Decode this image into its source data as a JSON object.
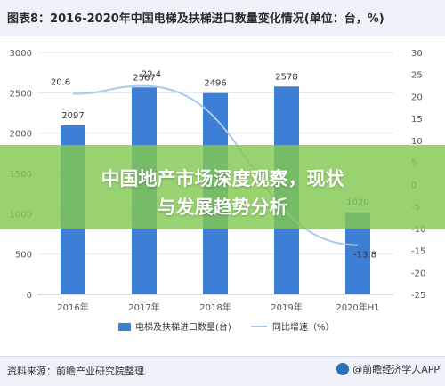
{
  "header": {
    "title": "图表8：2016-2020年中国电梯及扶梯进口数量变化情况(单位：台，%)"
  },
  "footer": {
    "source": "资料来源：前瞻产业研究院整理",
    "brand": "@前瞻经济学人APP"
  },
  "overlay": {
    "line1": "中国地产市场深度观察，现状",
    "line2": "与发展趋势分析"
  },
  "colors": {
    "bar": "#3d7fd4",
    "line": "#a9c9ee",
    "overlay": "#82c850"
  },
  "chart_data": {
    "type": "bar",
    "categories": [
      "2016年",
      "2017年",
      "2018年",
      "2019年",
      "2020年H1"
    ],
    "series": [
      {
        "name": "电梯及扶梯进口数量(台)",
        "type": "bar",
        "axis": "left",
        "values": [
          2097,
          2567,
          2496,
          2578,
          1020
        ],
        "labels": [
          "2097",
          "2567",
          "2496",
          "2578",
          "1020"
        ]
      },
      {
        "name": "同比增速（%）",
        "type": "line",
        "axis": "right",
        "values": [
          20.6,
          22.4,
          null,
          null,
          -13.8
        ],
        "labels": [
          "20.6",
          "22.4",
          "",
          "",
          "-13.8"
        ]
      }
    ],
    "y_left": {
      "range": [
        0,
        3000
      ],
      "ticks": [
        "0",
        "500",
        "1000",
        "1500",
        "2000",
        "2500",
        "3000"
      ]
    },
    "y_right": {
      "range": [
        -25,
        30
      ],
      "ticks": [
        "-25",
        "-20",
        "-15",
        "-10",
        "-5",
        "0",
        "5",
        "10",
        "15",
        "20",
        "25",
        "30"
      ]
    },
    "legend_position": "bottom"
  }
}
